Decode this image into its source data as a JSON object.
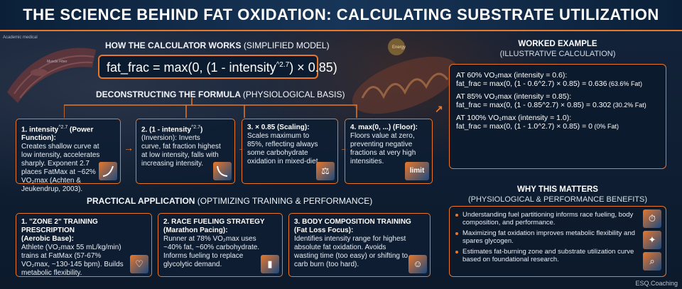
{
  "title": "THE SCIENCE BEHIND FAT OXIDATION: CALCULATING SUBSTRATE UTILIZATION",
  "bg_labels": {
    "muscle_tag": "Academic medical",
    "muscle_sub": "Muscle Fiber",
    "mito_tag": "Energy"
  },
  "how": {
    "heading": "HOW THE CALCULATOR WORKS",
    "heading_note": "(SIMPLIFIED MODEL)"
  },
  "formula": {
    "lhs": "fat_frac = max(0, (1 - intensity",
    "exp": "^2.7",
    "rhs": ") × 0.85)"
  },
  "deconstruct": {
    "heading": "DECONSTRUCTING THE FORMULA",
    "heading_note": "(PHYSIOLOGICAL BASIS)"
  },
  "cards": [
    {
      "title": "1. intensity",
      "title_sup": "^2.7",
      "title_tail": " (Power Function):",
      "body": "Creates shallow curve at low intensity, accelerates sharply. Exponent 2.7 places FatMax at ~62% VO₂max (Achten & Jeukendrup, 2003).",
      "icon": "rising-curve-icon"
    },
    {
      "title": "2. (1 - intensity",
      "title_sup": "^2.7",
      "title_tail": ")",
      "body": "(Inversion): Inverts curve, fat fraction highest at low intensity, falls with increasing intensity.",
      "icon": "falling-curve-icon"
    },
    {
      "title": "3. × 0.85 (Scaling):",
      "title_sup": "",
      "title_tail": "",
      "body": "Scales maximum to 85%, reflecting always some carbohydrate oxidation in mixed-diet.",
      "icon": "scale-icon"
    },
    {
      "title": "4. max(0, ...) (Floor):",
      "title_sup": "",
      "title_tail": "",
      "body": "Floors value at zero, preventing negative fractions at very high intensities.",
      "icon": "limit",
      "icon_label": "limit"
    }
  ],
  "practical": {
    "heading": "PRACTICAL APPLICATION",
    "heading_note": "(OPTIMIZING TRAINING & PERFORMANCE)"
  },
  "apps": [
    {
      "title": "1. \"ZONE 2\" TRAINING PRESCRIPTION",
      "subtitle": "(Aerobic Base):",
      "body": "Athlete (VO₂max 55 mL/kg/min) trains at FatMax (57-67% VO₂max, ~130-145 bpm). Builds metabolic flexibility.",
      "icon": "heart-rate-icon"
    },
    {
      "title": "2. RACE FUELING STRATEGY",
      "subtitle": "(Marathon Pacing):",
      "body": "Runner at 78% VO₂max uses ~40% fat, ~60% carbohydrate. Informs fueling to replace glycolytic demand.",
      "icon": "gel-pack-icon"
    },
    {
      "title": "3. BODY COMPOSITION TRAINING",
      "subtitle": "(Fat Loss Focus):",
      "body": "Identifies intensity range for highest absolute fat oxidation. Avoids wasting time (too easy) or shifting to carb burn (too hard).",
      "icon": "body-icon"
    }
  ],
  "worked": {
    "heading": "WORKED EXAMPLE",
    "heading_note": "(ILLUSTRATIVE CALCULATION)",
    "examples": [
      {
        "label": "AT 60% VO₂max (intensity = 0.6):",
        "calc": "fat_frac = max(0, (1 - 0.6^2.7) × 0.85) = 0.636",
        "pct": " (63.6% Fat)"
      },
      {
        "label": "AT 85% VO₂max (intensity = 0.85):",
        "calc": "fat_frac = max(0, (1 - 0.85^2.7) × 0.85) = 0.302",
        "pct": " (30.2% Fat)"
      },
      {
        "label": "AT 100% VO₂max (intensity = 1.0):",
        "calc": "fat_frac = max(0, (1 - 1.0^2.7) × 0.85) = 0",
        "pct": " (0% Fat)"
      }
    ]
  },
  "why": {
    "heading": "WHY THIS MATTERS",
    "heading_note": "(PHYSIOLOGICAL & PERFORMANCE BENEFITS)",
    "items": [
      "Understanding fuel partitioning informs race fueling, body composition, and performance.",
      "Maximizing fat oxidation improves metabolic flexibility and spares glycogen.",
      "Estimates fat-burning zone and substrate utilization curve based on foundational research."
    ]
  },
  "brand": "ESQ.Coaching",
  "colors": {
    "accent": "#e8772a",
    "background": "#0d1b2e",
    "panel": "#0e1e32"
  }
}
